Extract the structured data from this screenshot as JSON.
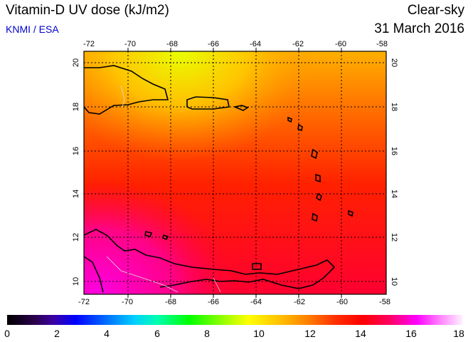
{
  "header": {
    "title": "Vitamin-D UV dose (kJ/m2)",
    "credit": "KNMI / ESA",
    "sky": "Clear-sky",
    "date": "31 March 2016"
  },
  "map": {
    "lon_labels": [
      "-72",
      "-70",
      "-68",
      "-66",
      "-64",
      "-62",
      "-60",
      "-58"
    ],
    "lat_labels": [
      "20",
      "18",
      "16",
      "14",
      "12",
      "10"
    ]
  },
  "colorbar": {
    "ticks": [
      "0",
      "2",
      "4",
      "6",
      "8",
      "10",
      "12",
      "14",
      "16",
      "18"
    ]
  }
}
